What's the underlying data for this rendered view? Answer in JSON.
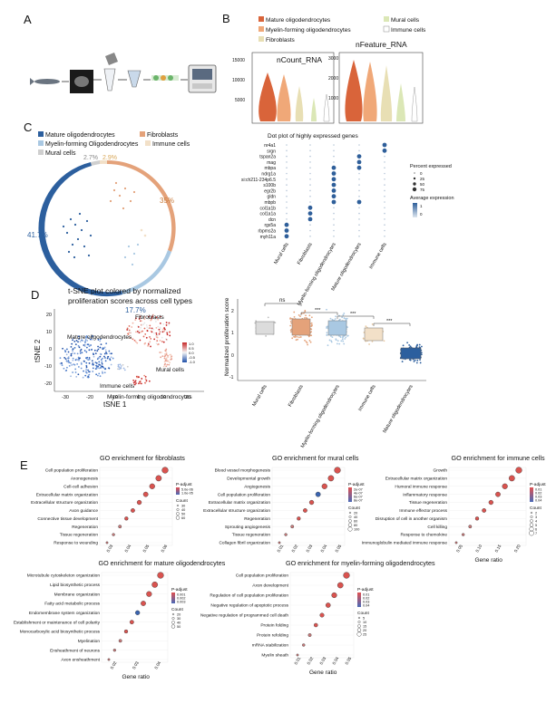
{
  "panels": {
    "A": "A",
    "B": "B",
    "C": "C",
    "D": "D",
    "E": "E"
  },
  "legendB": [
    "Mature oligodendrocytes",
    "Mural cells",
    "Myelin-forming oligodendrocytes",
    "Immune cells",
    "Fibroblasts"
  ],
  "violin": {
    "left_title": "nCount_RNA",
    "right_title": "nFeature_RNA",
    "left_ticks": [
      "15000",
      "10000",
      "5000"
    ],
    "right_ticks": [
      "3000",
      "2000",
      "1000"
    ]
  },
  "legendC": [
    "Mature oligodendrocytes",
    "Fibroblasts",
    "Myelin-forming Oligodendrocytes",
    "Immune cells",
    "Mural cells"
  ],
  "donut": {
    "p1": "41.7%",
    "p2": "17.7%",
    "p3": "35%",
    "p4": "2.7%",
    "p5": "2.9%"
  },
  "dot": {
    "title": "Dot plot of highly expressed genes",
    "genes": [
      "nr4a1",
      "srgn",
      "tspan2a",
      "mag",
      "mbpa",
      "ndrg1a",
      "si:ch211-234p6.5",
      "s100b",
      "egr2b",
      "gldn",
      "mbpb",
      "col1a1b",
      "col1a1a",
      "dcn",
      "rgs5a",
      "rbpms2a",
      "myh11a"
    ],
    "xlabels": [
      "Mural cells",
      "Fibroblasts",
      "Myelin-forming oligodendrocytes",
      "Mature oligodendrocytes",
      "Immune cells"
    ],
    "pct_title": "Percent expressed",
    "pct_vals": [
      "0",
      "25",
      "50",
      "75"
    ],
    "avg_title": "Average expression",
    "avg_vals": [
      "1",
      "0"
    ]
  },
  "tsne": {
    "title1": "t-SNE plot colored by normalized",
    "title2": "proliferation scores across cell types",
    "xlab": "tSNE 1",
    "ylab": "tSNE 2",
    "xticks": [
      "-30",
      "-20",
      "-10",
      "0",
      "10",
      "20"
    ],
    "yticks": [
      "20",
      "10",
      "0",
      "-10",
      "-20"
    ],
    "labels": [
      "Fibroblasts",
      "Mature oligodendrocytes",
      "Mural cells",
      "Immune cells",
      "Myelin-forming oligodendrocytes"
    ],
    "scale": [
      "1.0",
      "0.5",
      "0.0",
      "-0.5",
      "-1.0"
    ]
  },
  "box": {
    "ylab": "Normalized proliferation score",
    "yticks": [
      "2",
      "1",
      "0",
      "-1"
    ],
    "xlabels": [
      "Mural cells",
      "Fibroblasts",
      "Myelin-forming oligodendrocytes",
      "Immune cells",
      "Mature oligodendrocytes"
    ],
    "sig": [
      "ns",
      "***",
      "***",
      "***"
    ]
  },
  "go": {
    "g1": {
      "title": "GO enrichment for fibroblasts",
      "terms": [
        "Cell population proliferation",
        "Axonogenesis",
        "Cell-cell adhesion",
        "Extracellular matrix organization",
        "Extracellular structure organization",
        "Axon guidance",
        "Connective tissue development",
        "Regeneration",
        "Tissue regeneration",
        "Response to wounding"
      ],
      "xticks": [
        "0.03",
        "0.04",
        "0.05",
        "0.06"
      ],
      "p_title": "P-adjust",
      "p_vals": [
        "5.0e-06",
        "1.0e-05"
      ],
      "c_title": "Count",
      "c_vals": [
        "30",
        "40",
        "50",
        "60"
      ]
    },
    "g2": {
      "title": "GO enrichment for mural cells",
      "terms": [
        "Blood vessel morphogenesis",
        "Developmental growth",
        "Angiogenesis",
        "Cell population proliferation",
        "Extracellular matrix organization",
        "Extracellular structure organization",
        "Regeneration",
        "Sprouting angiogenesis",
        "Tissue regeneration",
        "Collagen fibril organization"
      ],
      "xticks": [
        "0.01",
        "0.02",
        "0.03",
        "0.04",
        "0.05"
      ],
      "p_title": "P-adjust",
      "p_vals": [
        "2e-07",
        "4e-07",
        "6e-07",
        "8e-07"
      ],
      "c_title": "Count",
      "c_vals": [
        "20",
        "40",
        "60",
        "80",
        "100"
      ]
    },
    "g3": {
      "title": "GO enrichment for immune cells",
      "terms": [
        "Growth",
        "Extracellular matrix organization",
        "Humoral immune response",
        "Inflammatory response",
        "Tissue regeneration",
        "Immune effector process",
        "Disruption of cell in another organism",
        "Cell killing",
        "Response to chemokine",
        "Immunoglobulin mediated immune response"
      ],
      "xticks": [
        "0.05",
        "0.10",
        "0.15",
        "0.20"
      ],
      "xlab": "Gene ratio",
      "p_title": "P-adjust",
      "p_vals": [
        "0.01",
        "0.02",
        "0.03",
        "0.04"
      ],
      "c_title": "Count",
      "c_vals": [
        "2",
        "3",
        "4",
        "5",
        "6",
        "7"
      ]
    },
    "g4": {
      "title": "GO enrichment for mature oligodendrocytes",
      "terms": [
        "Microtubule cytoskeleton organization",
        "Lipid biosynthetic process",
        "Membrane organization",
        "Fatty acid metabolic process",
        "Endomembrane system organization",
        "Establishment or maintenance of cell polarity",
        "Monocarboxylic acid biosynthetic process",
        "Myelination",
        "Ensheathment of neurons",
        "Axon ensheathment"
      ],
      "xticks": [
        "0.02",
        "0.03",
        "0.04"
      ],
      "xlab": "Gene ratio",
      "p_title": "P-adjust",
      "p_vals": [
        "0.001",
        "0.002",
        "0.003"
      ],
      "c_title": "Count",
      "c_vals": [
        "20",
        "30",
        "40",
        "50"
      ]
    },
    "g5": {
      "title": "GO enrichment for myelin-forming oligodendrocytes",
      "terms": [
        "Cell population proliferation",
        "Axon development",
        "Regulation of cell population proliferation",
        "Negative regulation of apoptotic process",
        "Negative regulation of programmed cell death",
        "Protein folding",
        "Protein refolding",
        "mRNA stabilization",
        "Myelin sheath"
      ],
      "xticks": [
        "0.01",
        "0.02",
        "0.03",
        "0.04",
        "0.05"
      ],
      "xlab": "Gene ratio",
      "p_title": "P-adjust",
      "p_vals": [
        "0.01",
        "0.02",
        "0.03",
        "0.04"
      ],
      "c_title": "Count",
      "c_vals": [
        "5",
        "10",
        "15",
        "20",
        "25"
      ]
    }
  },
  "colors": {
    "mature": "#2c5f9e",
    "myelin": "#a9c8e2",
    "fibro": "#e4a27a",
    "immune": "#f2e0c8",
    "mural": "#cfcfcf",
    "orange": "#d9643a",
    "blue": "#2f66b3",
    "pink": "#e07b7b"
  }
}
